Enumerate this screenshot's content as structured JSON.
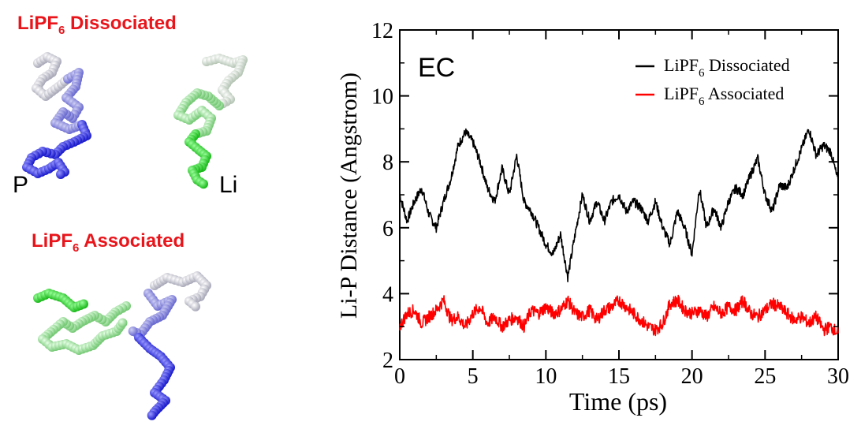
{
  "left_panel": {
    "title_dissociated": {
      "prefix": "LiPF",
      "subscript": "6",
      "suffix": " Dissociated"
    },
    "title_associated": {
      "prefix": "LiPF",
      "subscript": "6",
      "suffix": " Associated"
    },
    "label_p": "P",
    "label_li": "Li",
    "colors": {
      "title": "#e8151b",
      "p_chain_dark": "#1a1acc",
      "p_chain_mid": "#7a7ad8",
      "p_chain_light": "#e0e0ea",
      "li_chain_dark": "#22cc22",
      "li_chain_mid": "#88dd88",
      "li_chain_light": "#d8ecd8"
    }
  },
  "chart_data": {
    "type": "line",
    "annotation": "EC",
    "xlabel": "Time (ps)",
    "ylabel": "Li-P Distance (Angstrom)",
    "xlim": [
      0,
      30
    ],
    "ylim": [
      2,
      12
    ],
    "xticks": [
      "0",
      "5",
      "10",
      "15",
      "20",
      "25",
      "30"
    ],
    "yticks": [
      "2",
      "4",
      "6",
      "8",
      "10",
      "12"
    ],
    "grid": false,
    "legend_position": "top-right",
    "series": [
      {
        "name": {
          "prefix": "LiPF",
          "subscript": "6",
          "suffix": " Dissociated"
        },
        "color": "#000000",
        "x": [
          0,
          0.5,
          1,
          1.5,
          2,
          2.5,
          3,
          3.5,
          4,
          4.5,
          5,
          5.5,
          6,
          6.5,
          7,
          7.5,
          8,
          8.5,
          9,
          9.5,
          10,
          10.5,
          11,
          11.5,
          12,
          12.5,
          13,
          13.5,
          14,
          14.5,
          15,
          15.5,
          16,
          16.5,
          17,
          17.5,
          18,
          18.5,
          19,
          19.5,
          20,
          20.5,
          21,
          21.5,
          22,
          22.5,
          23,
          23.5,
          24,
          24.5,
          25,
          25.5,
          26,
          26.5,
          27,
          27.5,
          28,
          28.5,
          29,
          29.5,
          30
        ],
        "y": [
          7.0,
          6.2,
          6.8,
          7.2,
          6.4,
          6.0,
          6.8,
          7.5,
          8.5,
          8.9,
          8.6,
          8.0,
          7.2,
          6.8,
          7.8,
          7.0,
          8.2,
          6.8,
          6.5,
          6.0,
          5.5,
          5.2,
          5.8,
          4.5,
          5.8,
          7.0,
          6.2,
          6.8,
          6.2,
          6.8,
          7.0,
          6.5,
          6.8,
          6.6,
          6.2,
          6.8,
          6.0,
          5.5,
          6.5,
          6.0,
          5.2,
          7.2,
          6.0,
          6.6,
          6.0,
          6.8,
          7.2,
          7.0,
          7.6,
          8.1,
          7.0,
          6.5,
          7.3,
          7.2,
          7.8,
          8.4,
          9.0,
          8.2,
          8.5,
          8.3,
          7.4
        ]
      },
      {
        "name": {
          "prefix": "LiPF",
          "subscript": "6",
          "suffix": " Associated"
        },
        "color": "#ff0000",
        "x": [
          0,
          0.5,
          1,
          1.5,
          2,
          2.5,
          3,
          3.5,
          4,
          4.5,
          5,
          5.5,
          6,
          6.5,
          7,
          7.5,
          8,
          8.5,
          9,
          9.5,
          10,
          10.5,
          11,
          11.5,
          12,
          12.5,
          13,
          13.5,
          14,
          14.5,
          15,
          15.5,
          16,
          16.5,
          17,
          17.5,
          18,
          18.5,
          19,
          19.5,
          20,
          20.5,
          21,
          21.5,
          22,
          22.5,
          23,
          23.5,
          24,
          24.5,
          25,
          25.5,
          26,
          26.5,
          27,
          27.5,
          28,
          28.5,
          29,
          29.5,
          30
        ],
        "y": [
          3.0,
          3.4,
          3.5,
          3.1,
          3.3,
          3.5,
          3.8,
          3.2,
          3.3,
          3.0,
          3.4,
          3.6,
          3.1,
          3.3,
          3.0,
          3.2,
          3.3,
          3.0,
          3.5,
          3.4,
          3.6,
          3.4,
          3.5,
          3.8,
          3.4,
          3.3,
          3.5,
          3.2,
          3.5,
          3.6,
          3.8,
          3.6,
          3.4,
          3.2,
          3.0,
          2.9,
          3.1,
          3.7,
          3.8,
          3.5,
          3.4,
          3.5,
          3.3,
          3.6,
          3.4,
          3.6,
          3.5,
          3.8,
          3.4,
          3.3,
          3.5,
          3.7,
          3.6,
          3.4,
          3.2,
          3.3,
          3.1,
          3.3,
          2.9,
          3.0,
          2.8
        ]
      }
    ]
  }
}
